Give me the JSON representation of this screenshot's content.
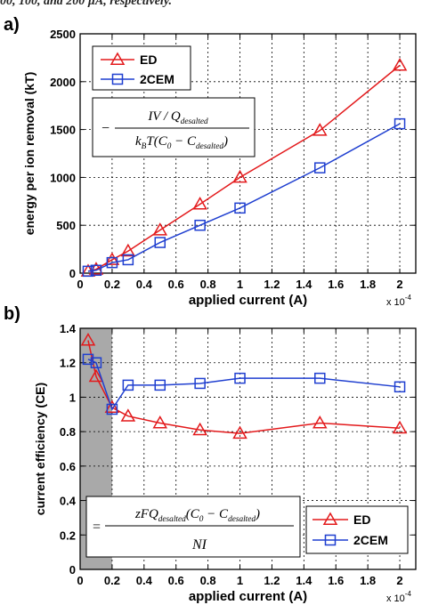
{
  "header_text": "00, 100, and 200 µA, respectively.",
  "chart_data": [
    {
      "panel_label": "a)",
      "type": "line",
      "xlabel": "applied current (A)",
      "ylabel": "energy per ion removal (kT)",
      "x_multiplier": "x 10",
      "x_multiplier_exp": "-4",
      "xlim": [
        0,
        2.1
      ],
      "ylim": [
        0,
        2500
      ],
      "x_ticks": [
        0,
        0.2,
        0.4,
        0.6,
        0.8,
        1,
        1.2,
        1.4,
        1.6,
        1.8,
        2
      ],
      "x_tick_labels": [
        "0",
        "0.2",
        "0.4",
        "0.6",
        "0.8",
        "1",
        "1.2",
        "1.4",
        "1.6",
        "1.8",
        "2"
      ],
      "y_ticks": [
        0,
        500,
        1000,
        1500,
        2000,
        2500
      ],
      "y_tick_labels": [
        "0",
        "500",
        "1000",
        "1500",
        "2000",
        "2500"
      ],
      "grid": true,
      "legend_position": "top-left",
      "formula": {
        "prefix": "−",
        "numerator": "IV / Q",
        "numerator_sub": "desalted",
        "denominator_a": "k",
        "denominator_a_sub": "B",
        "denominator_b": "T(C",
        "denominator_b_sub": "0",
        "denominator_c": " − C",
        "denominator_c_sub": "desalted",
        "denominator_d": ")"
      },
      "series": [
        {
          "name": "ED",
          "color": "#e31a1c",
          "marker": "triangle",
          "x": [
            0.05,
            0.1,
            0.2,
            0.3,
            0.5,
            0.75,
            1.0,
            1.5,
            2.0
          ],
          "y": [
            20,
            40,
            140,
            230,
            450,
            720,
            1000,
            1490,
            2170
          ]
        },
        {
          "name": "2CEM",
          "color": "#1f3fd0",
          "marker": "square",
          "x": [
            0.05,
            0.1,
            0.2,
            0.3,
            0.5,
            0.75,
            1.0,
            1.5,
            2.0
          ],
          "y": [
            20,
            30,
            110,
            140,
            320,
            500,
            680,
            1100,
            1560
          ]
        }
      ]
    },
    {
      "panel_label": "b)",
      "type": "line",
      "xlabel": "applied current (A)",
      "ylabel": "current efficiency (CE)",
      "x_multiplier": "x 10",
      "x_multiplier_exp": "-4",
      "xlim": [
        0,
        2.1
      ],
      "ylim": [
        0,
        1.4
      ],
      "x_ticks": [
        0,
        0.2,
        0.4,
        0.6,
        0.8,
        1,
        1.2,
        1.4,
        1.6,
        1.8,
        2
      ],
      "x_tick_labels": [
        "0",
        "0.2",
        "0.4",
        "0.6",
        "0.8",
        "1",
        "1.2",
        "1.4",
        "1.6",
        "1.8",
        "2"
      ],
      "y_ticks": [
        0,
        0.2,
        0.4,
        0.6,
        0.8,
        1,
        1.2,
        1.4
      ],
      "y_tick_labels": [
        "0",
        "0.2",
        "0.4",
        "0.6",
        "0.8",
        "1",
        "1.2",
        "1.4"
      ],
      "grid": true,
      "shaded_region_x": [
        0,
        0.2
      ],
      "shaded_color": "#a9a9a9",
      "legend_position": "bottom-right",
      "formula": {
        "prefix": "=",
        "numerator_a": "zFQ",
        "numerator_a_sub": "desalted",
        "numerator_b": "(C",
        "numerator_b_sub": "0",
        "numerator_c": " − C",
        "numerator_c_sub": "desalted",
        "numerator_d": ")",
        "denominator": "NI"
      },
      "series": [
        {
          "name": "ED",
          "color": "#e31a1c",
          "marker": "triangle",
          "x": [
            0.05,
            0.1,
            0.2,
            0.3,
            0.5,
            0.75,
            1.0,
            1.5,
            2.0
          ],
          "y": [
            1.33,
            1.12,
            0.94,
            0.89,
            0.85,
            0.81,
            0.79,
            0.85,
            0.82
          ]
        },
        {
          "name": "2CEM",
          "color": "#1f3fd0",
          "marker": "square",
          "x": [
            0.05,
            0.1,
            0.2,
            0.3,
            0.5,
            0.75,
            1.0,
            1.5,
            2.0
          ],
          "y": [
            1.22,
            1.2,
            0.93,
            1.07,
            1.07,
            1.08,
            1.11,
            1.11,
            1.06
          ]
        }
      ]
    }
  ]
}
